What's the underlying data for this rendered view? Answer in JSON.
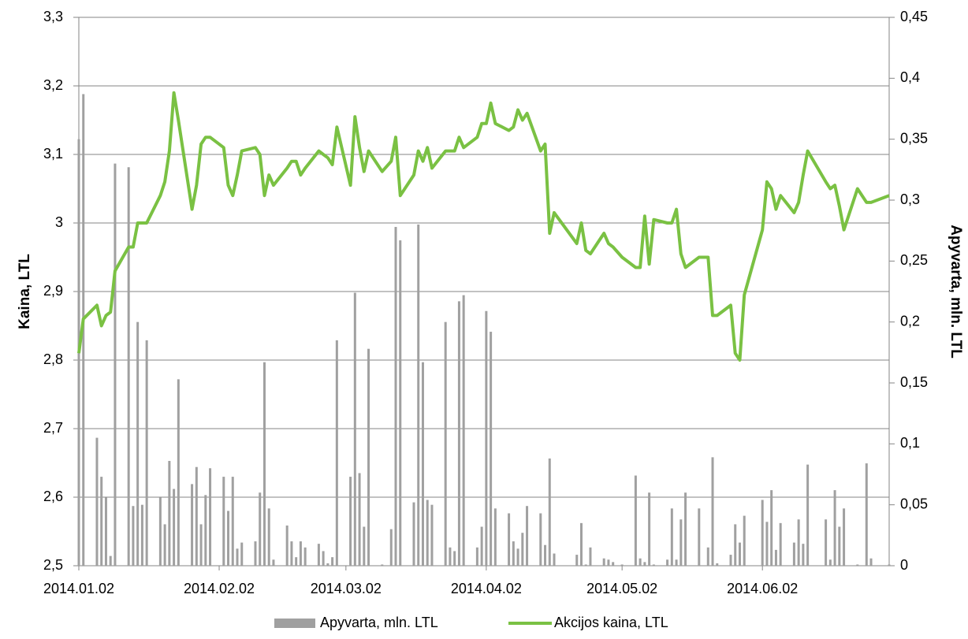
{
  "chart_data": {
    "type": "combo",
    "y_label": "Kaina, LTL",
    "y2_label": "Apyvarta, mln. LTL",
    "xlim": [
      "2014.01.02",
      "2014.06.30"
    ],
    "xticks": [
      "2014.01.02",
      "2014.02.02",
      "2014.03.02",
      "2014.04.02",
      "2014.05.02",
      "2014.06.02"
    ],
    "ylim": [
      2.5,
      3.3
    ],
    "yticks": [
      {
        "value": 2.5,
        "label": "2,5"
      },
      {
        "value": 2.6,
        "label": "2,6"
      },
      {
        "value": 2.7,
        "label": "2,7"
      },
      {
        "value": 2.8,
        "label": "2,8"
      },
      {
        "value": 2.9,
        "label": "2,9"
      },
      3,
      {
        "value": 3.1,
        "label": "3,1"
      },
      {
        "value": 3.2,
        "label": "3,2"
      },
      {
        "value": 3.3,
        "label": "3,3"
      }
    ],
    "y2lim": [
      0,
      0.45
    ],
    "y2ticks": [
      0,
      {
        "value": 0.05,
        "label": "0,05"
      },
      {
        "value": 0.1,
        "label": "0,1"
      },
      {
        "value": 0.15,
        "label": "0,15"
      },
      {
        "value": 0.2,
        "label": "0,2"
      },
      {
        "value": 0.25,
        "label": "0,25"
      },
      {
        "value": 0.3,
        "label": "0,3"
      },
      {
        "value": 0.35,
        "label": "0,35"
      },
      {
        "value": 0.4,
        "label": "0,4"
      },
      {
        "value": 0.45,
        "label": "0,45"
      }
    ],
    "grid": true,
    "legend": "bottom",
    "x": [
      "2014.01.02",
      "2014.01.03",
      "2014.01.06",
      "2014.01.07",
      "2014.01.08",
      "2014.01.09",
      "2014.01.10",
      "2014.01.13",
      "2014.01.14",
      "2014.01.15",
      "2014.01.16",
      "2014.01.17",
      "2014.01.20",
      "2014.01.21",
      "2014.01.22",
      "2014.01.23",
      "2014.01.24",
      "2014.01.27",
      "2014.01.28",
      "2014.01.29",
      "2014.01.30",
      "2014.01.31",
      "2014.02.03",
      "2014.02.04",
      "2014.02.05",
      "2014.02.06",
      "2014.02.07",
      "2014.02.10",
      "2014.02.11",
      "2014.02.12",
      "2014.02.13",
      "2014.02.14",
      "2014.02.17",
      "2014.02.18",
      "2014.02.19",
      "2014.02.20",
      "2014.02.21",
      "2014.02.24",
      "2014.02.25",
      "2014.02.26",
      "2014.02.27",
      "2014.02.28",
      "2014.03.03",
      "2014.03.04",
      "2014.03.05",
      "2014.03.06",
      "2014.03.07",
      "2014.03.10",
      "2014.03.12",
      "2014.03.13",
      "2014.03.14",
      "2014.03.17",
      "2014.03.18",
      "2014.03.19",
      "2014.03.20",
      "2014.03.21",
      "2014.03.24",
      "2014.03.25",
      "2014.03.26",
      "2014.03.27",
      "2014.03.28",
      "2014.03.31",
      "2014.04.01",
      "2014.04.02",
      "2014.04.03",
      "2014.04.04",
      "2014.04.07",
      "2014.04.08",
      "2014.04.09",
      "2014.04.10",
      "2014.04.11",
      "2014.04.14",
      "2014.04.15",
      "2014.04.16",
      "2014.04.17",
      "2014.04.22",
      "2014.04.23",
      "2014.04.24",
      "2014.04.25",
      "2014.04.28",
      "2014.04.29",
      "2014.04.30",
      "2014.05.02",
      "2014.05.05",
      "2014.05.06",
      "2014.05.07",
      "2014.05.08",
      "2014.05.09",
      "2014.05.12",
      "2014.05.13",
      "2014.05.14",
      "2014.05.15",
      "2014.05.16",
      "2014.05.19",
      "2014.05.21",
      "2014.05.22",
      "2014.05.23",
      "2014.05.26",
      "2014.05.27",
      "2014.05.28",
      "2014.05.29",
      "2014.06.02",
      "2014.06.03",
      "2014.06.04",
      "2014.06.05",
      "2014.06.06",
      "2014.06.09",
      "2014.06.10",
      "2014.06.11",
      "2014.06.12",
      "2014.06.16",
      "2014.06.17",
      "2014.06.18",
      "2014.06.19",
      "2014.06.20",
      "2014.06.23",
      "2014.06.25",
      "2014.06.26",
      "2014.06.30"
    ],
    "series": [
      {
        "name": "Apyvarta, mln. LTL",
        "type": "bar",
        "axis": "y2",
        "color": "#a0a0a0",
        "values": [
          0.35,
          0.387,
          0.105,
          0.073,
          0.056,
          0.008,
          0.33,
          0.327,
          0.049,
          0.2,
          0.05,
          0.185,
          0.056,
          0.034,
          0.086,
          0.063,
          0.153,
          0.067,
          0.081,
          0.034,
          0.058,
          0.08,
          0.073,
          0.045,
          0.073,
          0.014,
          0.019,
          0.02,
          0.06,
          0.167,
          0.047,
          0.005,
          0.033,
          0.02,
          0.007,
          0.02,
          0.015,
          0.018,
          0.012,
          0.002,
          0.007,
          0.185,
          0.073,
          0.224,
          0.076,
          0.032,
          0.178,
          0.001,
          0.03,
          0.278,
          0.267,
          0.052,
          0.28,
          0.167,
          0.054,
          0.05,
          0.2,
          0.015,
          0.012,
          0.217,
          0.222,
          0.015,
          0.032,
          0.209,
          0.192,
          0.047,
          0.043,
          0.02,
          0.014,
          0.027,
          0.049,
          0.043,
          0.017,
          0.088,
          0.01,
          0.009,
          0.035,
          0.001,
          0.015,
          0.006,
          0.005,
          0.003,
          0.001,
          0.074,
          0.006,
          0.003,
          0.06,
          0.001,
          0.005,
          0.047,
          0.005,
          0.038,
          0.06,
          0.047,
          0.015,
          0.089,
          0.002,
          0.009,
          0.034,
          0.019,
          0.041,
          0.054,
          0.036,
          0.062,
          0.013,
          0.035,
          0.019,
          0.038,
          0.018,
          0.083,
          0.038,
          0.005,
          0.062,
          0.032,
          0.047,
          0.001,
          0.084,
          0.006,
          0.001
        ]
      },
      {
        "name": "Akcijos kaina, LTL",
        "type": "line",
        "color": "#7ac143",
        "values": [
          2.81,
          2.86,
          2.88,
          2.85,
          2.865,
          2.87,
          2.93,
          2.965,
          2.965,
          3.0,
          3.0,
          3.0,
          3.04,
          3.06,
          3.105,
          3.19,
          3.15,
          3.02,
          3.055,
          3.115,
          3.125,
          3.125,
          3.11,
          3.055,
          3.04,
          3.07,
          3.105,
          3.11,
          3.1,
          3.04,
          3.07,
          3.055,
          3.08,
          3.09,
          3.09,
          3.07,
          3.08,
          3.105,
          3.1,
          3.095,
          3.085,
          3.14,
          3.055,
          3.155,
          3.11,
          3.075,
          3.105,
          3.075,
          3.09,
          3.125,
          3.04,
          3.07,
          3.105,
          3.09,
          3.11,
          3.08,
          3.105,
          3.105,
          3.105,
          3.125,
          3.11,
          3.125,
          3.145,
          3.145,
          3.175,
          3.145,
          3.135,
          3.14,
          3.165,
          3.15,
          3.16,
          3.105,
          3.115,
          2.985,
          3.015,
          2.97,
          3.0,
          2.96,
          2.955,
          2.985,
          2.97,
          2.965,
          2.95,
          2.935,
          2.935,
          3.01,
          2.94,
          3.005,
          3.0,
          3.0,
          3.02,
          2.955,
          2.935,
          2.95,
          2.95,
          2.865,
          2.865,
          2.88,
          2.81,
          2.8,
          2.895,
          2.99,
          3.06,
          3.05,
          3.02,
          3.04,
          3.015,
          3.03,
          3.07,
          3.105,
          3.06,
          3.05,
          3.055,
          3.025,
          2.99,
          3.05,
          3.03,
          3.03,
          3.04
        ]
      }
    ]
  }
}
